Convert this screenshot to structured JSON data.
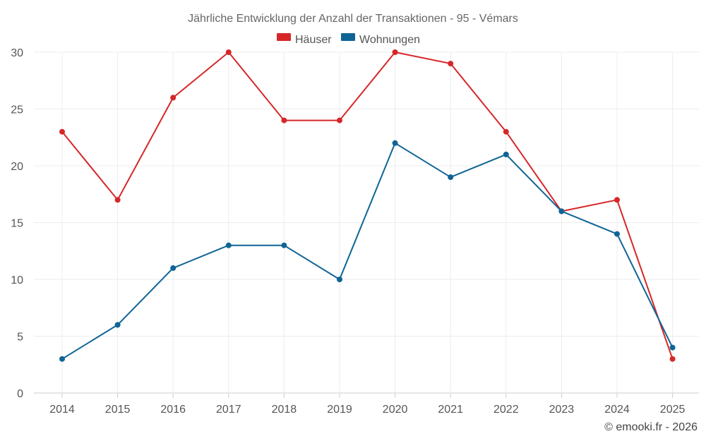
{
  "chart_data": {
    "type": "line",
    "title": "Jährliche Entwicklung der Anzahl der Transaktionen - 95 - Vémars",
    "categories": [
      "2014",
      "2015",
      "2016",
      "2017",
      "2018",
      "2019",
      "2020",
      "2021",
      "2022",
      "2023",
      "2024",
      "2025"
    ],
    "series": [
      {
        "name": "Häuser",
        "color": "#d62728",
        "values": [
          23,
          17,
          26,
          30,
          24,
          24,
          30,
          29,
          23,
          16,
          17,
          3
        ]
      },
      {
        "name": "Wohnungen",
        "color": "#0f6496",
        "values": [
          3,
          6,
          11,
          13,
          13,
          10,
          22,
          19,
          21,
          16,
          14,
          4
        ]
      }
    ],
    "ylim": [
      0,
      30
    ],
    "yticks": [
      "0",
      "5",
      "10",
      "15",
      "20",
      "25",
      "30"
    ],
    "xlabel": "",
    "ylabel": "",
    "grid": true,
    "legend_position": "top-center"
  },
  "credit": "© emooki.fr - 2026"
}
